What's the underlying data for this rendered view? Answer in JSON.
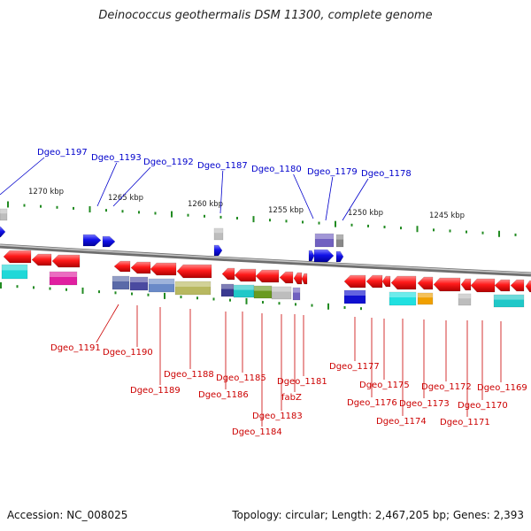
{
  "title": "Deinococcus geothermalis DSM 11300, complete genome",
  "footer": {
    "accession": "Accession: NC_008025",
    "summary": "Topology: circular; Length: 2,467,205 bp; Genes: 2,393"
  },
  "colors": {
    "forward_gene": "#1010e0",
    "reverse_gene": "#ff1010",
    "label_forward": "#0000cc",
    "label_reverse": "#cc0000",
    "tick": "#228b22",
    "backbone": "#8a8a8a"
  },
  "ticks": [
    {
      "label": "1270 kbp"
    },
    {
      "label": "1265 kbp"
    },
    {
      "label": "1260 kbp"
    },
    {
      "label": "1255 kbp"
    },
    {
      "label": "1250 kbp"
    },
    {
      "label": "1245 kbp"
    }
  ],
  "forward_labels": [
    "Dgeo_1197",
    "Dgeo_1193",
    "Dgeo_1192",
    "Dgeo_1187",
    "Dgeo_1180",
    "Dgeo_1179",
    "Dgeo_1178"
  ],
  "reverse_labels": [
    "Dgeo_1191",
    "Dgeo_1190",
    "Dgeo_1189",
    "Dgeo_1188",
    "Dgeo_1186",
    "Dgeo_1185",
    "Dgeo_1184",
    "Dgeo_1183",
    "fabZ",
    "Dgeo_1181",
    "Dgeo_1177",
    "Dgeo_1176",
    "Dgeo_1175",
    "Dgeo_1174",
    "Dgeo_1173",
    "Dgeo_1172",
    "Dgeo_1171",
    "Dgeo_1170",
    "Dgeo_1169"
  ]
}
